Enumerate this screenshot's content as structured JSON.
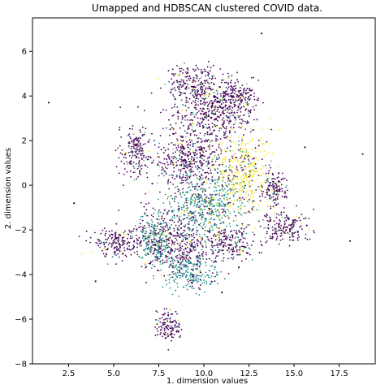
{
  "chart_data": {
    "type": "scatter",
    "title": "Umapped and HDBSCAN clustered COVID data.",
    "xlabel": "1. dimension values",
    "ylabel": "2. dimension values",
    "xlim": [
      0.5,
      19.5
    ],
    "ylim": [
      -8,
      7.5
    ],
    "x_ticks": [
      2.5,
      5.0,
      7.5,
      10.0,
      12.5,
      15.0,
      17.5
    ],
    "x_tick_labels": [
      "2.5",
      "5.0",
      "7.5",
      "10.0",
      "12.5",
      "15.0",
      "17.5"
    ],
    "y_ticks": [
      -8,
      -6,
      -4,
      -2,
      0,
      2,
      4,
      6
    ],
    "y_tick_labels": [
      "−8",
      "−6",
      "−4",
      "−2",
      "0",
      "2",
      "4",
      "6"
    ],
    "grid": false,
    "legend": false,
    "colormap": "viridis",
    "cluster_colors": [
      "#440154",
      "#3b528b",
      "#21918c",
      "#5ec962",
      "#fde725"
    ],
    "dominant_color": "#440154",
    "regions": [
      {
        "center": [
          8.5,
          -2.5
        ],
        "spread": [
          1.6,
          1.0
        ],
        "dominant": "#440154"
      },
      {
        "center": [
          9.2,
          1.2
        ],
        "spread": [
          1.4,
          1.0
        ],
        "dominant": "#440154"
      },
      {
        "center": [
          12.2,
          0.6
        ],
        "spread": [
          1.1,
          1.3
        ],
        "dominant": "#fde725"
      },
      {
        "center": [
          10.5,
          3.2
        ],
        "spread": [
          1.6,
          0.8
        ],
        "dominant": "#440154"
      },
      {
        "center": [
          9.5,
          4.5
        ],
        "spread": [
          1.2,
          0.6
        ],
        "dominant": "#440154"
      },
      {
        "center": [
          10.0,
          -0.8
        ],
        "spread": [
          1.5,
          1.2
        ],
        "dominant": "#21918c"
      },
      {
        "center": [
          9.3,
          -3.9
        ],
        "spread": [
          1.1,
          0.6
        ],
        "dominant": "#21918c"
      },
      {
        "center": [
          7.3,
          -2.4
        ],
        "spread": [
          0.6,
          0.9
        ],
        "dominant": "#21918c"
      },
      {
        "center": [
          13.9,
          -0.2
        ],
        "spread": [
          0.5,
          0.5
        ],
        "dominant": "#440154"
      },
      {
        "center": [
          14.5,
          -1.8
        ],
        "spread": [
          0.9,
          0.5
        ],
        "dominant": "#440154"
      },
      {
        "center": [
          5.2,
          -2.6
        ],
        "spread": [
          1.0,
          0.5
        ],
        "dominant": "#440154"
      },
      {
        "center": [
          6.2,
          1.5
        ],
        "spread": [
          0.6,
          0.8
        ],
        "dominant": "#440154"
      },
      {
        "center": [
          8.0,
          -6.3
        ],
        "spread": [
          0.5,
          0.5
        ],
        "dominant": "#440154"
      },
      {
        "center": [
          11.5,
          -2.6
        ],
        "spread": [
          1.0,
          0.5
        ],
        "dominant": "#440154"
      },
      {
        "center": [
          11.8,
          4.0
        ],
        "spread": [
          0.9,
          0.5
        ],
        "dominant": "#440154"
      }
    ],
    "isolated_points": [
      [
        1.4,
        3.7
      ],
      [
        2.8,
        -0.8
      ],
      [
        13.2,
        6.8
      ],
      [
        18.1,
        -2.5
      ],
      [
        15.6,
        1.7
      ],
      [
        18.8,
        1.4
      ],
      [
        4.0,
        -4.3
      ],
      [
        15.7,
        -1.8
      ],
      [
        11.0,
        -4.8
      ]
    ]
  }
}
